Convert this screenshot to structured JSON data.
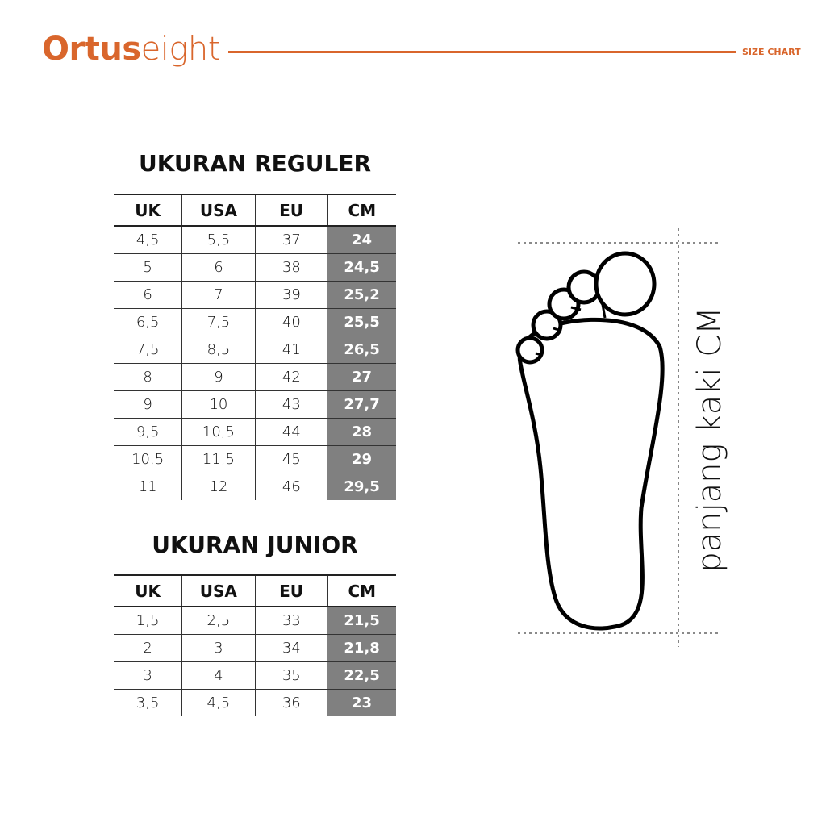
{
  "header": {
    "brand_bold": "Ortus",
    "brand_light": "eight",
    "label": "SIZE CHART",
    "accent": "#d9662c"
  },
  "columns": [
    "UK",
    "USA",
    "EU",
    "CM"
  ],
  "regular": {
    "title": "UKURAN REGULER",
    "rows": [
      [
        "4,5",
        "5,5",
        "37",
        "24"
      ],
      [
        "5",
        "6",
        "38",
        "24,5"
      ],
      [
        "6",
        "7",
        "39",
        "25,2"
      ],
      [
        "6,5",
        "7,5",
        "40",
        "25,5"
      ],
      [
        "7,5",
        "8,5",
        "41",
        "26,5"
      ],
      [
        "8",
        "9",
        "42",
        "27"
      ],
      [
        "9",
        "10",
        "43",
        "27,7"
      ],
      [
        "9,5",
        "10,5",
        "44",
        "28"
      ],
      [
        "10,5",
        "11,5",
        "45",
        "29"
      ],
      [
        "11",
        "12",
        "46",
        "29,5"
      ]
    ]
  },
  "junior": {
    "title": "UKURAN JUNIOR",
    "rows": [
      [
        "1,5",
        "2,5",
        "33",
        "21,5"
      ],
      [
        "2",
        "3",
        "34",
        "21,8"
      ],
      [
        "3",
        "4",
        "35",
        "22,5"
      ],
      [
        "3,5",
        "4,5",
        "36",
        "23"
      ]
    ]
  },
  "foot": {
    "label": "panjang kaki CM",
    "icon": "foot-outline-icon"
  }
}
